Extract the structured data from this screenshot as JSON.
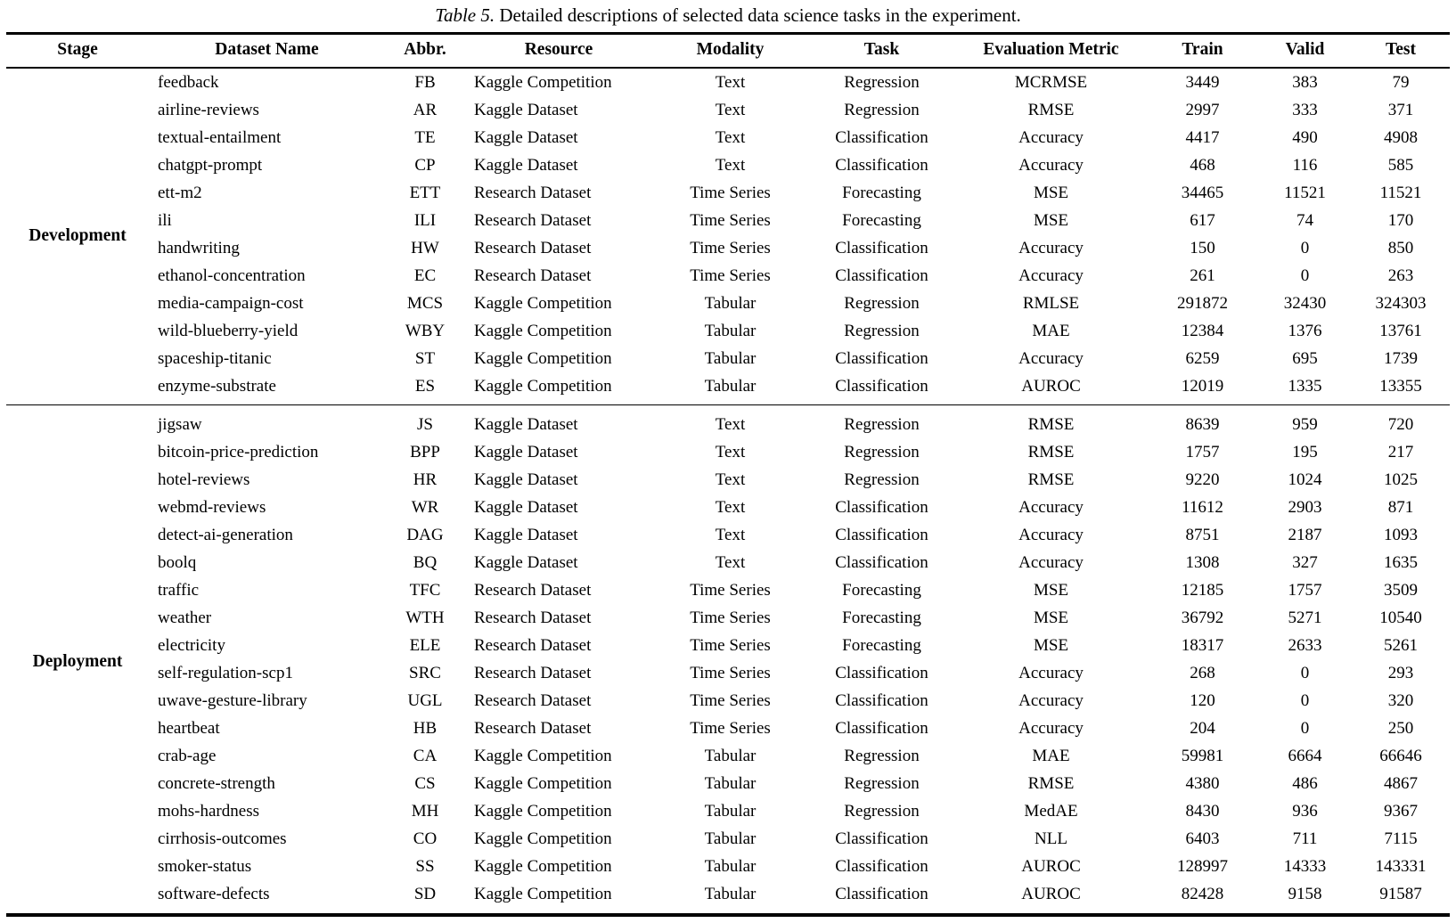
{
  "caption": {
    "label": "Table 5.",
    "text": "Detailed descriptions of selected data science tasks in the experiment."
  },
  "colors": {
    "text": "#000000",
    "background": "#ffffff",
    "rule": "#000000"
  },
  "table": {
    "columns": [
      "Stage",
      "Dataset Name",
      "Abbr.",
      "Resource",
      "Modality",
      "Task",
      "Evaluation Metric",
      "Train",
      "Valid",
      "Test"
    ],
    "sections": [
      {
        "stage": "Development",
        "rows": [
          [
            "feedback",
            "FB",
            "Kaggle Competition",
            "Text",
            "Regression",
            "MCRMSE",
            "3449",
            "383",
            "79"
          ],
          [
            "airline-reviews",
            "AR",
            "Kaggle Dataset",
            "Text",
            "Regression",
            "RMSE",
            "2997",
            "333",
            "371"
          ],
          [
            "textual-entailment",
            "TE",
            "Kaggle Dataset",
            "Text",
            "Classification",
            "Accuracy",
            "4417",
            "490",
            "4908"
          ],
          [
            "chatgpt-prompt",
            "CP",
            "Kaggle Dataset",
            "Text",
            "Classification",
            "Accuracy",
            "468",
            "116",
            "585"
          ],
          [
            "ett-m2",
            "ETT",
            "Research Dataset",
            "Time Series",
            "Forecasting",
            "MSE",
            "34465",
            "11521",
            "11521"
          ],
          [
            "ili",
            "ILI",
            "Research Dataset",
            "Time Series",
            "Forecasting",
            "MSE",
            "617",
            "74",
            "170"
          ],
          [
            "handwriting",
            "HW",
            "Research Dataset",
            "Time Series",
            "Classification",
            "Accuracy",
            "150",
            "0",
            "850"
          ],
          [
            "ethanol-concentration",
            "EC",
            "Research Dataset",
            "Time Series",
            "Classification",
            "Accuracy",
            "261",
            "0",
            "263"
          ],
          [
            "media-campaign-cost",
            "MCS",
            "Kaggle Competition",
            "Tabular",
            "Regression",
            "RMLSE",
            "291872",
            "32430",
            "324303"
          ],
          [
            "wild-blueberry-yield",
            "WBY",
            "Kaggle Competition",
            "Tabular",
            "Regression",
            "MAE",
            "12384",
            "1376",
            "13761"
          ],
          [
            "spaceship-titanic",
            "ST",
            "Kaggle Competition",
            "Tabular",
            "Classification",
            "Accuracy",
            "6259",
            "695",
            "1739"
          ],
          [
            "enzyme-substrate",
            "ES",
            "Kaggle Competition",
            "Tabular",
            "Classification",
            "AUROC",
            "12019",
            "1335",
            "13355"
          ]
        ]
      },
      {
        "stage": "Deployment",
        "rows": [
          [
            "jigsaw",
            "JS",
            "Kaggle Dataset",
            "Text",
            "Regression",
            "RMSE",
            "8639",
            "959",
            "720"
          ],
          [
            "bitcoin-price-prediction",
            "BPP",
            "Kaggle Dataset",
            "Text",
            "Regression",
            "RMSE",
            "1757",
            "195",
            "217"
          ],
          [
            "hotel-reviews",
            "HR",
            "Kaggle Dataset",
            "Text",
            "Regression",
            "RMSE",
            "9220",
            "1024",
            "1025"
          ],
          [
            "webmd-reviews",
            "WR",
            "Kaggle Dataset",
            "Text",
            "Classification",
            "Accuracy",
            "11612",
            "2903",
            "871"
          ],
          [
            "detect-ai-generation",
            "DAG",
            "Kaggle Dataset",
            "Text",
            "Classification",
            "Accuracy",
            "8751",
            "2187",
            "1093"
          ],
          [
            "boolq",
            "BQ",
            "Kaggle Dataset",
            "Text",
            "Classification",
            "Accuracy",
            "1308",
            "327",
            "1635"
          ],
          [
            "traffic",
            "TFC",
            "Research Dataset",
            "Time Series",
            "Forecasting",
            "MSE",
            "12185",
            "1757",
            "3509"
          ],
          [
            "weather",
            "WTH",
            "Research Dataset",
            "Time Series",
            "Forecasting",
            "MSE",
            "36792",
            "5271",
            "10540"
          ],
          [
            "electricity",
            "ELE",
            "Research Dataset",
            "Time Series",
            "Forecasting",
            "MSE",
            "18317",
            "2633",
            "5261"
          ],
          [
            "self-regulation-scp1",
            "SRC",
            "Research Dataset",
            "Time Series",
            "Classification",
            "Accuracy",
            "268",
            "0",
            "293"
          ],
          [
            "uwave-gesture-library",
            "UGL",
            "Research Dataset",
            "Time Series",
            "Classification",
            "Accuracy",
            "120",
            "0",
            "320"
          ],
          [
            "heartbeat",
            "HB",
            "Research Dataset",
            "Time Series",
            "Classification",
            "Accuracy",
            "204",
            "0",
            "250"
          ],
          [
            "crab-age",
            "CA",
            "Kaggle Competition",
            "Tabular",
            "Regression",
            "MAE",
            "59981",
            "6664",
            "66646"
          ],
          [
            "concrete-strength",
            "CS",
            "Kaggle Competition",
            "Tabular",
            "Regression",
            "RMSE",
            "4380",
            "486",
            "4867"
          ],
          [
            "mohs-hardness",
            "MH",
            "Kaggle Competition",
            "Tabular",
            "Regression",
            "MedAE",
            "8430",
            "936",
            "9367"
          ],
          [
            "cirrhosis-outcomes",
            "CO",
            "Kaggle Competition",
            "Tabular",
            "Classification",
            "NLL",
            "6403",
            "711",
            "7115"
          ],
          [
            "smoker-status",
            "SS",
            "Kaggle Competition",
            "Tabular",
            "Classification",
            "AUROC",
            "128997",
            "14333",
            "143331"
          ],
          [
            "software-defects",
            "SD",
            "Kaggle Competition",
            "Tabular",
            "Classification",
            "AUROC",
            "82428",
            "9158",
            "91587"
          ]
        ]
      }
    ]
  }
}
